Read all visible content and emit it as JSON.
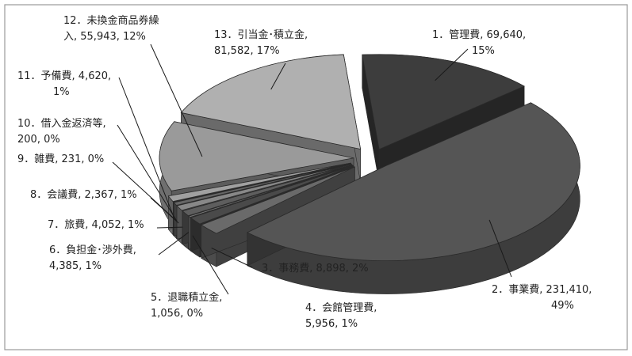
{
  "chart_data": {
    "type": "pie",
    "title": "",
    "style": "3d-exploded",
    "legend": "none",
    "slices": [
      {
        "label": "1．管理費",
        "value": 69640,
        "percent": "15%",
        "line1": "1．管理費, 69,640,",
        "line2": "15%",
        "color": "#3d3d3d"
      },
      {
        "label": "2．事業費",
        "value": 231410,
        "percent": "49%",
        "line1": "2．事業費, 231,410,",
        "line2": "49%",
        "color": "#555555"
      },
      {
        "label": "3．事務費",
        "value": 8898,
        "percent": "2%",
        "line1": "3．事務費, 8,898, 2%",
        "line2": "",
        "color": "#6a6a6a"
      },
      {
        "label": "4．会館管理費",
        "value": 5956,
        "percent": "1%",
        "line1": "4．会館管理費,",
        "line2": "5,956, 1%",
        "color": "#4a4a4a"
      },
      {
        "label": "5．退職積立金",
        "value": 1056,
        "percent": "0%",
        "line1": "5．退職積立金,",
        "line2": "1,056, 0%",
        "color": "#7a7a7a"
      },
      {
        "label": "6．負担金･渉外費",
        "value": 4385,
        "percent": "1%",
        "line1": "6．負担金･渉外費,",
        "line2": "4,385, 1%",
        "color": "#5e5e5e"
      },
      {
        "label": "7．旅費",
        "value": 4052,
        "percent": "1%",
        "line1": "7．旅費, 4,052, 1%",
        "line2": "",
        "color": "#888888"
      },
      {
        "label": "8．会議費",
        "value": 2367,
        "percent": "1%",
        "line1": "8．会議費, 2,367, 1%",
        "line2": "",
        "color": "#666666"
      },
      {
        "label": "9．雑費",
        "value": 231,
        "percent": "0%",
        "line1": "9．雑費, 231, 0%",
        "line2": "",
        "color": "#999999"
      },
      {
        "label": "10．借入金返済等",
        "value": 200,
        "percent": "0%",
        "line1": "10．借入金返済等,",
        "line2": "200, 0%",
        "color": "#707070"
      },
      {
        "label": "11．予備費",
        "value": 4620,
        "percent": "1%",
        "line1": "11．予備費, 4,620,",
        "line2": "1%",
        "color": "#a0a0a0"
      },
      {
        "label": "12．未換金商品券繰入",
        "value": 55943,
        "percent": "12%",
        "line1": "12．未換金商品券繰",
        "line2": "入, 55,943, 12%",
        "color": "#9a9a9a"
      },
      {
        "label": "13．引当金･積立金",
        "value": 81582,
        "percent": "17%",
        "line1": "13．引当金･積立金,",
        "line2": "81,582, 17%",
        "color": "#b0b0b0"
      }
    ]
  }
}
